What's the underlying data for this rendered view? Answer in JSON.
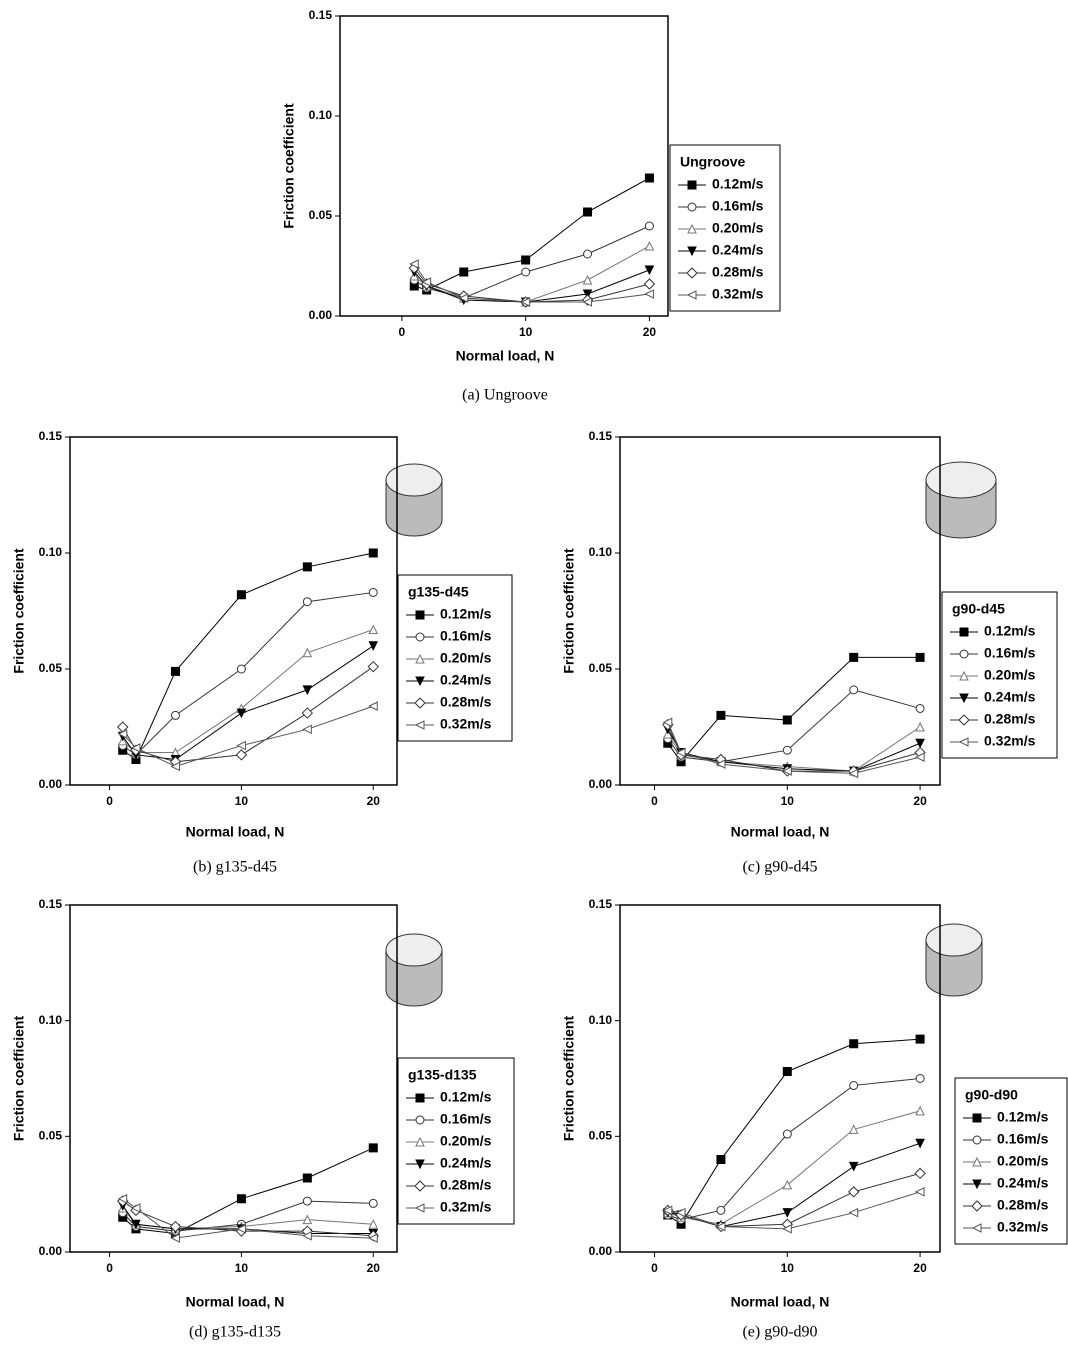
{
  "chart_data": [
    {
      "type": "line",
      "caption": "(a) Ungroove",
      "legend_title": "Ungroove",
      "xlabel": "Normal load, N",
      "ylabel": "Friction coefficient",
      "x": [
        1,
        2,
        5,
        10,
        15,
        20
      ],
      "xlim": [
        -5,
        21.5
      ],
      "xticks": [
        0,
        10,
        20
      ],
      "ylim": [
        0,
        0.15
      ],
      "yticks": [
        {
          "value": 0,
          "label": "0.00"
        },
        {
          "value": 0.05,
          "label": "0.05"
        },
        {
          "value": 0.1,
          "label": "0.10"
        },
        {
          "value": 0.15,
          "label": "0.15"
        }
      ],
      "series": [
        {
          "name": "0.12m/s",
          "color": "#000000",
          "marker": "square-filled",
          "values": [
            0.015,
            0.013,
            0.022,
            0.028,
            0.052,
            0.069
          ]
        },
        {
          "name": "0.16m/s",
          "color": "#333333",
          "marker": "circle-open",
          "values": [
            0.018,
            0.014,
            0.009,
            0.022,
            0.031,
            0.045
          ]
        },
        {
          "name": "0.20m/s",
          "color": "#777777",
          "marker": "triangle-up-open",
          "values": [
            0.02,
            0.015,
            0.009,
            0.007,
            0.018,
            0.035
          ]
        },
        {
          "name": "0.24m/s",
          "color": "#000000",
          "marker": "triangle-down-filled",
          "values": [
            0.022,
            0.015,
            0.008,
            0.007,
            0.011,
            0.023
          ]
        },
        {
          "name": "0.28m/s",
          "color": "#333333",
          "marker": "diamond-open",
          "values": [
            0.024,
            0.016,
            0.01,
            0.007,
            0.008,
            0.016
          ]
        },
        {
          "name": "0.32m/s",
          "color": "#555555",
          "marker": "triangle-left-open",
          "values": [
            0.026,
            0.017,
            0.009,
            0.007,
            0.007,
            0.011
          ]
        }
      ]
    },
    {
      "type": "line",
      "caption": "(b) g135-d45",
      "legend_title": "g135-d45",
      "xlabel": "Normal load, N",
      "ylabel": "Friction coefficient",
      "x": [
        1,
        2,
        5,
        10,
        15,
        20
      ],
      "xlim": [
        -3,
        21.8
      ],
      "xticks": [
        0,
        10,
        20
      ],
      "ylim": [
        0,
        0.15
      ],
      "yticks": [
        {
          "value": 0,
          "label": "0.00"
        },
        {
          "value": 0.05,
          "label": "0.05"
        },
        {
          "value": 0.1,
          "label": "0.10"
        },
        {
          "value": 0.15,
          "label": "0.15"
        }
      ],
      "series": [
        {
          "name": "0.12m/s",
          "color": "#000000",
          "marker": "square-filled",
          "values": [
            0.015,
            0.011,
            0.049,
            0.082,
            0.094,
            0.1
          ]
        },
        {
          "name": "0.16m/s",
          "color": "#333333",
          "marker": "circle-open",
          "values": [
            0.017,
            0.013,
            0.03,
            0.05,
            0.079,
            0.083
          ]
        },
        {
          "name": "0.20m/s",
          "color": "#777777",
          "marker": "triangle-up-open",
          "values": [
            0.019,
            0.014,
            0.014,
            0.033,
            0.057,
            0.067
          ]
        },
        {
          "name": "0.24m/s",
          "color": "#000000",
          "marker": "triangle-down-filled",
          "values": [
            0.021,
            0.013,
            0.011,
            0.031,
            0.041,
            0.06
          ]
        },
        {
          "name": "0.28m/s",
          "color": "#333333",
          "marker": "diamond-open",
          "values": [
            0.025,
            0.015,
            0.01,
            0.013,
            0.031,
            0.051
          ]
        },
        {
          "name": "0.32m/s",
          "color": "#555555",
          "marker": "triangle-left-open",
          "values": [
            0.022,
            0.016,
            0.008,
            0.017,
            0.024,
            0.034
          ]
        }
      ]
    },
    {
      "type": "line",
      "caption": "(c) g90-d45",
      "legend_title": "g90-d45",
      "xlabel": "Normal load, N",
      "ylabel": "Friction coefficient",
      "x": [
        1,
        2,
        5,
        10,
        15,
        20
      ],
      "xlim": [
        -2.6,
        21.5
      ],
      "xticks": [
        0,
        10,
        20
      ],
      "ylim": [
        0,
        0.15
      ],
      "yticks": [
        {
          "value": 0,
          "label": "0.00"
        },
        {
          "value": 0.05,
          "label": "0.05"
        },
        {
          "value": 0.1,
          "label": "0.10"
        },
        {
          "value": 0.15,
          "label": "0.15"
        }
      ],
      "series": [
        {
          "name": "0.12m/s",
          "color": "#000000",
          "marker": "square-filled",
          "values": [
            0.018,
            0.01,
            0.03,
            0.028,
            0.055,
            0.055
          ]
        },
        {
          "name": "0.16m/s",
          "color": "#333333",
          "marker": "circle-open",
          "values": [
            0.02,
            0.012,
            0.01,
            0.015,
            0.041,
            0.033
          ]
        },
        {
          "name": "0.20m/s",
          "color": "#777777",
          "marker": "triangle-up-open",
          "values": [
            0.022,
            0.013,
            0.01,
            0.008,
            0.006,
            0.025
          ]
        },
        {
          "name": "0.24m/s",
          "color": "#000000",
          "marker": "triangle-down-filled",
          "values": [
            0.024,
            0.014,
            0.01,
            0.007,
            0.006,
            0.018
          ]
        },
        {
          "name": "0.28m/s",
          "color": "#333333",
          "marker": "diamond-open",
          "values": [
            0.026,
            0.013,
            0.011,
            0.006,
            0.006,
            0.014
          ]
        },
        {
          "name": "0.32m/s",
          "color": "#555555",
          "marker": "triangle-left-open",
          "values": [
            0.027,
            0.014,
            0.009,
            0.006,
            0.005,
            0.012
          ]
        }
      ]
    },
    {
      "type": "line",
      "caption": "(d) g135-d135",
      "legend_title": "g135-d135",
      "xlabel": "Normal load, N",
      "ylabel": "Friction coefficient",
      "x": [
        1,
        2,
        5,
        10,
        15,
        20
      ],
      "xlim": [
        -3,
        21.8
      ],
      "xticks": [
        0,
        10,
        20
      ],
      "ylim": [
        0,
        0.15
      ],
      "yticks": [
        {
          "value": 0,
          "label": "0.00"
        },
        {
          "value": 0.05,
          "label": "0.05"
        },
        {
          "value": 0.1,
          "label": "0.10"
        },
        {
          "value": 0.15,
          "label": "0.15"
        }
      ],
      "series": [
        {
          "name": "0.12m/s",
          "color": "#000000",
          "marker": "square-filled",
          "values": [
            0.015,
            0.01,
            0.008,
            0.023,
            0.032,
            0.045
          ]
        },
        {
          "name": "0.16m/s",
          "color": "#333333",
          "marker": "circle-open",
          "values": [
            0.017,
            0.011,
            0.009,
            0.012,
            0.022,
            0.021
          ]
        },
        {
          "name": "0.20m/s",
          "color": "#777777",
          "marker": "triangle-up-open",
          "values": [
            0.019,
            0.012,
            0.01,
            0.011,
            0.014,
            0.012
          ]
        },
        {
          "name": "0.24m/s",
          "color": "#000000",
          "marker": "triangle-down-filled",
          "values": [
            0.02,
            0.012,
            0.01,
            0.01,
            0.008,
            0.008
          ]
        },
        {
          "name": "0.28m/s",
          "color": "#333333",
          "marker": "diamond-open",
          "values": [
            0.022,
            0.018,
            0.011,
            0.009,
            0.009,
            0.007
          ]
        },
        {
          "name": "0.32m/s",
          "color": "#555555",
          "marker": "triangle-left-open",
          "values": [
            0.023,
            0.019,
            0.006,
            0.01,
            0.007,
            0.006
          ]
        }
      ]
    },
    {
      "type": "line",
      "caption": "(e) g90-d90",
      "legend_title": "g90-d90",
      "xlabel": "Normal load, N",
      "ylabel": "Friction coefficient",
      "x": [
        1,
        2,
        5,
        10,
        15,
        20
      ],
      "xlim": [
        -2.6,
        21.5
      ],
      "xticks": [
        0,
        10,
        20
      ],
      "ylim": [
        0,
        0.15
      ],
      "yticks": [
        {
          "value": 0,
          "label": "0.00"
        },
        {
          "value": 0.05,
          "label": "0.05"
        },
        {
          "value": 0.1,
          "label": "0.10"
        },
        {
          "value": 0.15,
          "label": "0.15"
        }
      ],
      "series": [
        {
          "name": "0.12m/s",
          "color": "#000000",
          "marker": "square-filled",
          "values": [
            0.016,
            0.012,
            0.04,
            0.078,
            0.09,
            0.092
          ]
        },
        {
          "name": "0.16m/s",
          "color": "#333333",
          "marker": "circle-open",
          "values": [
            0.016,
            0.014,
            0.018,
            0.051,
            0.072,
            0.075
          ]
        },
        {
          "name": "0.20m/s",
          "color": "#777777",
          "marker": "triangle-up-open",
          "values": [
            0.017,
            0.015,
            0.012,
            0.029,
            0.053,
            0.061
          ]
        },
        {
          "name": "0.24m/s",
          "color": "#000000",
          "marker": "triangle-down-filled",
          "values": [
            0.017,
            0.016,
            0.011,
            0.017,
            0.037,
            0.047
          ]
        },
        {
          "name": "0.28m/s",
          "color": "#333333",
          "marker": "diamond-open",
          "values": [
            0.018,
            0.016,
            0.011,
            0.012,
            0.026,
            0.034
          ]
        },
        {
          "name": "0.32m/s",
          "color": "#555555",
          "marker": "triangle-left-open",
          "values": [
            0.018,
            0.017,
            0.011,
            0.01,
            0.017,
            0.026
          ]
        }
      ]
    }
  ]
}
